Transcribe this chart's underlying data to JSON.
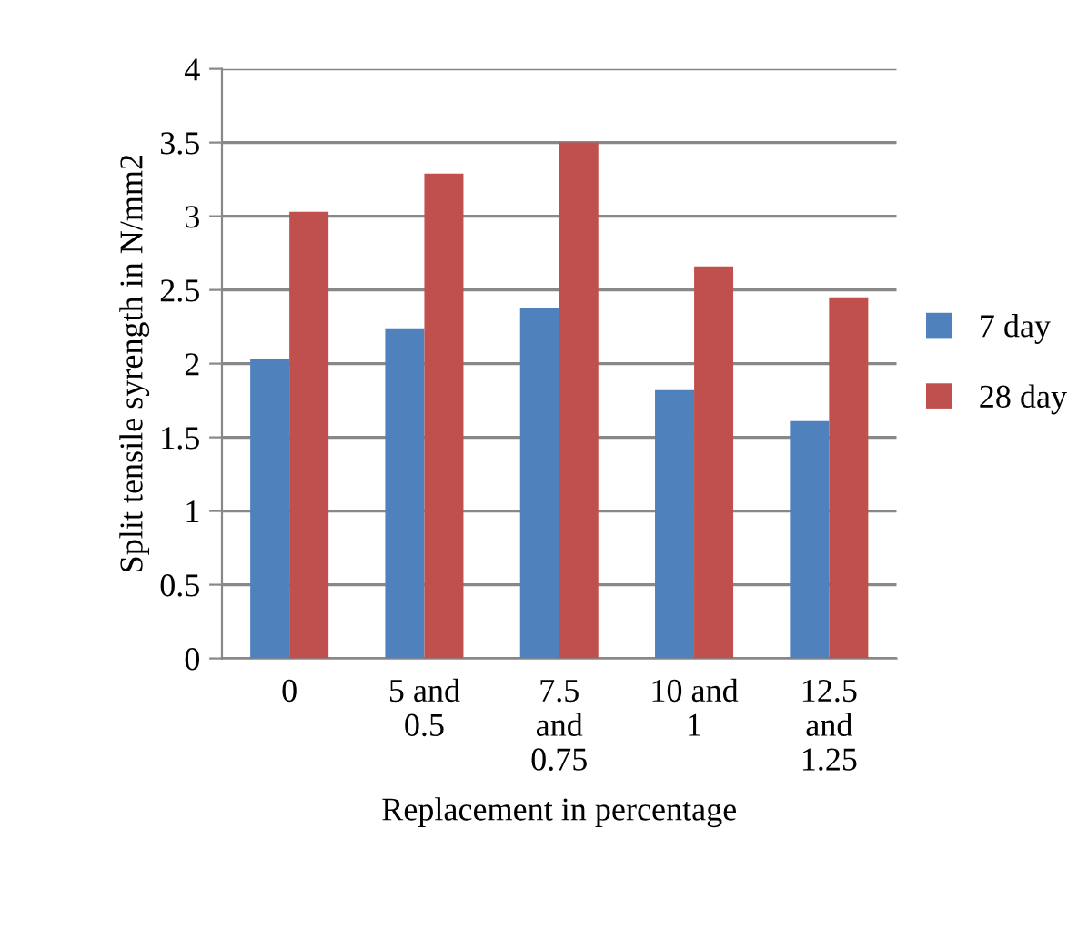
{
  "chart_data": {
    "type": "bar",
    "xlabel": "Replacement in percentage",
    "ylabel": "Split tensile syrength in N/mm2",
    "categories": [
      "0",
      "5 and\n0.5",
      "7.5\nand\n0.75",
      "10 and\n1",
      "12.5\nand\n1.25"
    ],
    "series": [
      {
        "name": "7 day",
        "color": "#4f81bd",
        "values": [
          2.03,
          2.24,
          2.38,
          1.82,
          1.61
        ]
      },
      {
        "name": "28 day",
        "color": "#c0504d",
        "values": [
          3.03,
          3.29,
          3.5,
          2.66,
          2.45
        ]
      }
    ],
    "ylim": [
      0,
      4
    ],
    "yticks": [
      0,
      0.5,
      1,
      1.5,
      2,
      2.5,
      3,
      3.5,
      4
    ],
    "grid": "y",
    "legend": "right"
  }
}
